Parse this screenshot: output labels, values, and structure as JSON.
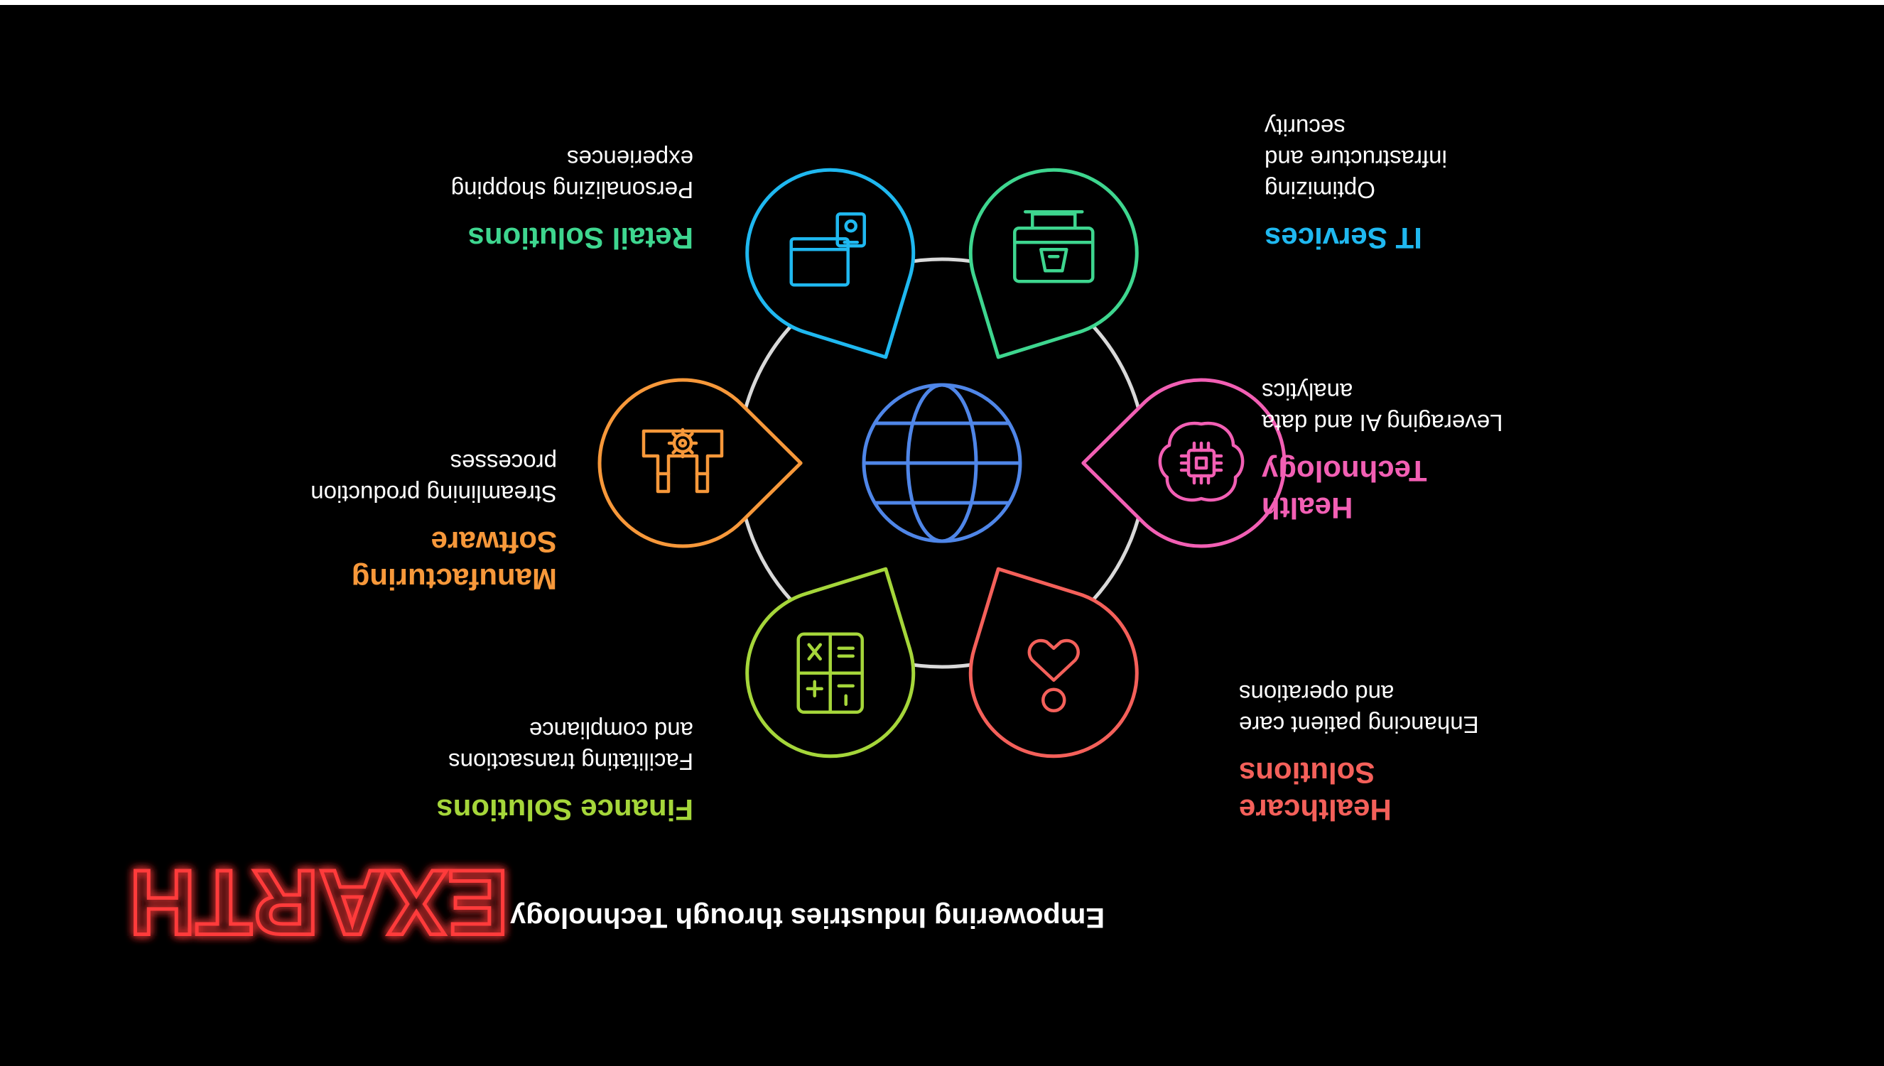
{
  "title": "Empowering Industries through Technology",
  "logo_text": "EXARTH",
  "center_icon": "globe-icon",
  "colors": {
    "background": "#000000",
    "ring": "#d9d9d9",
    "center": "#4f86e8",
    "logo": "#ff3b3b"
  },
  "items": [
    {
      "title": "Retail Solutions",
      "desc": "Personalizing shopping experiences",
      "color": "#3ed68f",
      "icon": "shopping-basket-icon"
    },
    {
      "title": "IT Services",
      "desc": "Optimizing infrastructure and security",
      "color": "#1fb8f0",
      "icon": "server-plug-icon"
    },
    {
      "title": "Health Technology",
      "desc": "Leveraging AI and data analytics",
      "color": "#f25fb4",
      "icon": "brain-chip-icon"
    },
    {
      "title": "Healthcare Solutions",
      "desc": "Enhancing patient care and operations",
      "color": "#f4605a",
      "icon": "heart-hand-icon"
    },
    {
      "title": "Finance Solutions",
      "desc": "Facilitating transactions and compliance",
      "color": "#a5d63a",
      "icon": "calculator-icon"
    },
    {
      "title": "Manufacturing Software",
      "desc": "Streamlining production processes",
      "color": "#f7983a",
      "icon": "robotic-arm-gear-icon"
    }
  ]
}
